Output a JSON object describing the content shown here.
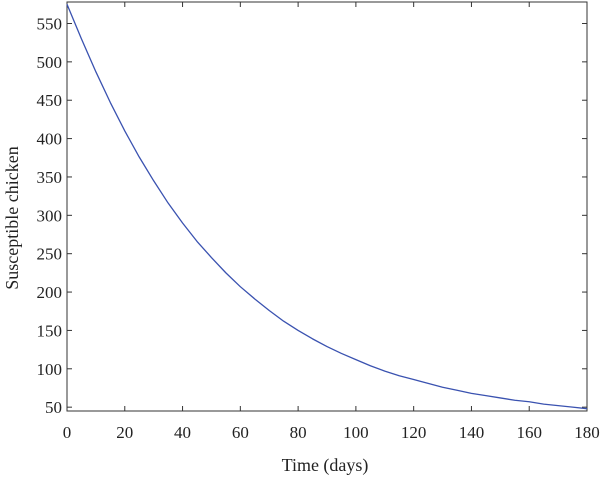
{
  "chart_data": {
    "type": "line",
    "title": "",
    "xlabel": "Time (days)",
    "ylabel": "Susceptible chicken",
    "xlim": [
      0,
      180
    ],
    "ylim": [
      45,
      578
    ],
    "xticks": [
      0,
      20,
      40,
      60,
      80,
      100,
      120,
      140,
      160,
      180
    ],
    "yticks": [
      50,
      100,
      150,
      200,
      250,
      300,
      350,
      400,
      450,
      500,
      550
    ],
    "grid": false,
    "line_color": "#3a52b0",
    "axis_color": "#333333",
    "series": [
      {
        "x": [
          0,
          5,
          10,
          15,
          20,
          25,
          30,
          35,
          40,
          45,
          50,
          55,
          60,
          65,
          70,
          75,
          80,
          85,
          90,
          95,
          100,
          105,
          110,
          115,
          120,
          125,
          130,
          135,
          140,
          145,
          150,
          155,
          160,
          165,
          170,
          175,
          180
        ],
        "values": [
          575,
          530,
          487,
          447,
          410,
          376,
          345,
          316,
          290,
          266,
          245,
          225,
          207,
          191,
          176,
          162,
          150,
          139,
          129,
          120,
          112,
          104,
          97,
          91,
          86,
          81,
          76,
          72,
          68,
          65,
          62,
          59,
          57,
          54,
          52,
          50,
          48
        ]
      }
    ]
  }
}
